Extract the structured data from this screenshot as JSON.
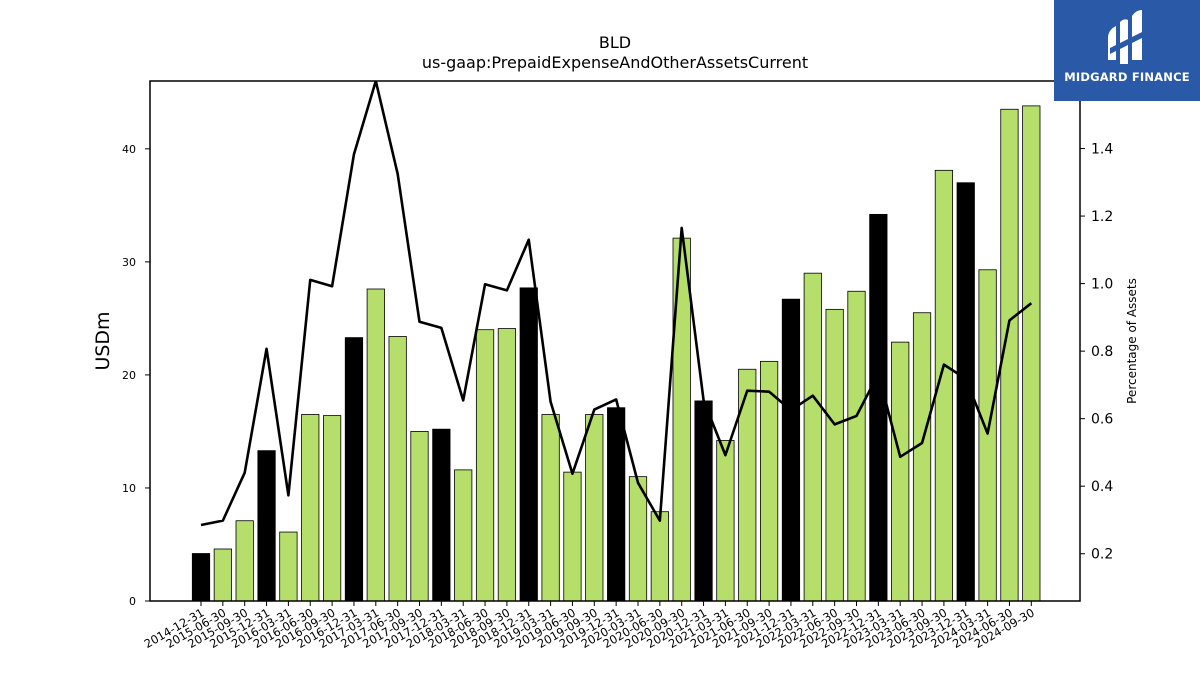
{
  "chart_data": {
    "type": "bar",
    "title": "BLD",
    "subtitle": "us-gaap:PrepaidExpenseAndOtherAssetsCurrent",
    "ylabel": "USDm",
    "y2label": "Percentage of Assets",
    "ylim": [
      0,
      46
    ],
    "y2lim": [
      0.06,
      1.6
    ],
    "yticks": [
      0,
      10,
      20,
      30,
      40
    ],
    "y2ticks": [
      0.2,
      0.4,
      0.6,
      0.8,
      1.0,
      1.2,
      1.4
    ],
    "categories": [
      "2014-12-31",
      "2015-06-30",
      "2015-09-30",
      "2015-12-31",
      "2016-03-31",
      "2016-06-30",
      "2016-09-30",
      "2016-12-31",
      "2017-03-31",
      "2017-06-30",
      "2017-09-30",
      "2017-12-31",
      "2018-03-31",
      "2018-06-30",
      "2018-09-30",
      "2018-12-31",
      "2019-03-31",
      "2019-06-30",
      "2019-09-30",
      "2019-12-31",
      "2020-03-31",
      "2020-06-30",
      "2020-09-30",
      "2020-12-31",
      "2021-03-31",
      "2021-06-30",
      "2021-09-30",
      "2021-12-31",
      "2022-03-31",
      "2022-06-30",
      "2022-09-30",
      "2022-12-31",
      "2023-03-31",
      "2023-06-30",
      "2023-09-30",
      "2023-12-31",
      "2024-03-31",
      "2024-06-30",
      "2024-09-30"
    ],
    "series": [
      {
        "type": "bar",
        "values": [
          4.2,
          4.6,
          7.1,
          13.3,
          6.1,
          16.5,
          16.4,
          23.3,
          27.6,
          23.4,
          15.0,
          15.2,
          11.6,
          24.0,
          24.1,
          27.7,
          16.5,
          11.4,
          16.5,
          17.1,
          11.0,
          7.9,
          32.1,
          17.7,
          14.2,
          20.5,
          21.2,
          26.7,
          29.0,
          25.8,
          27.4,
          34.2,
          22.9,
          25.5,
          38.1,
          37.0,
          29.3,
          43.5,
          43.8
        ],
        "colors": [
          "#000000",
          "#b5de6b",
          "#b5de6b",
          "#000000",
          "#b5de6b",
          "#b5de6b",
          "#b5de6b",
          "#000000",
          "#b5de6b",
          "#b5de6b",
          "#b5de6b",
          "#000000",
          "#b5de6b",
          "#b5de6b",
          "#b5de6b",
          "#000000",
          "#b5de6b",
          "#b5de6b",
          "#b5de6b",
          "#000000",
          "#b5de6b",
          "#b5de6b",
          "#b5de6b",
          "#000000",
          "#b5de6b",
          "#b5de6b",
          "#b5de6b",
          "#000000",
          "#b5de6b",
          "#b5de6b",
          "#b5de6b",
          "#000000",
          "#b5de6b",
          "#b5de6b",
          "#b5de6b",
          "#000000",
          "#b5de6b",
          "#b5de6b",
          "#b5de6b"
        ]
      },
      {
        "type": "line",
        "axis": "right",
        "color": "#000000",
        "values": [
          0.285,
          0.298,
          0.44,
          0.807,
          0.373,
          1.011,
          0.992,
          1.383,
          1.6,
          1.325,
          0.887,
          0.869,
          0.654,
          0.998,
          0.98,
          1.13,
          0.65,
          0.437,
          0.627,
          0.657,
          0.41,
          0.298,
          1.165,
          0.655,
          0.492,
          0.683,
          0.68,
          0.625,
          0.668,
          0.583,
          0.608,
          0.733,
          0.487,
          0.528,
          0.76,
          0.718,
          0.556,
          0.891,
          0.942
        ]
      }
    ]
  },
  "logo": {
    "text": "MIDGARD FINANCE"
  }
}
